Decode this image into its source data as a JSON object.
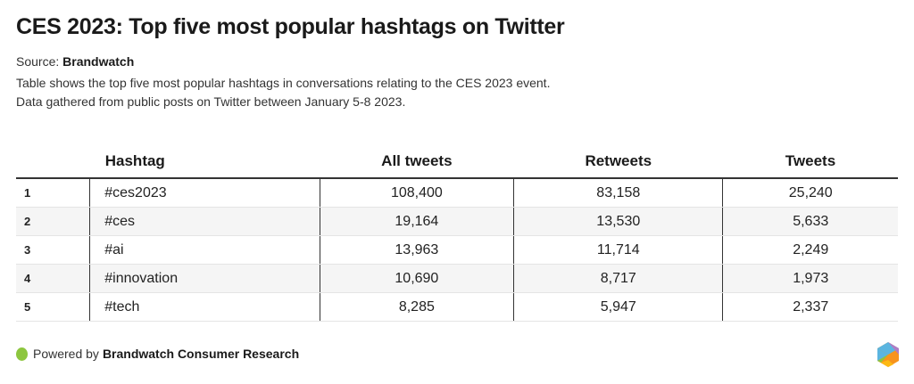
{
  "title": "CES 2023: Top five most popular hashtags on Twitter",
  "source_label": "Source:",
  "source_name": "Brandwatch",
  "description_lines": [
    "Table shows the top five most popular hashtags in conversations relating to the CES 2023 event.",
    "Data gathered from public posts on Twitter between January 5-8 2023."
  ],
  "chart_data": {
    "type": "table",
    "title": "CES 2023: Top five most popular hashtags on Twitter",
    "columns": [
      "",
      "Hashtag",
      "All tweets",
      "Retweets",
      "Tweets"
    ],
    "rows": [
      [
        "1",
        "#ces2023",
        "108,400",
        "83,158",
        "25,240"
      ],
      [
        "2",
        "#ces",
        "19,164",
        "13,530",
        "5,633"
      ],
      [
        "3",
        "#ai",
        "13,963",
        "11,714",
        "2,249"
      ],
      [
        "4",
        "#innovation",
        "10,690",
        "8,717",
        "1,973"
      ],
      [
        "5",
        "#tech",
        "8,285",
        "5,947",
        "2,337"
      ]
    ]
  },
  "footer": {
    "prefix": "Powered by",
    "brand": "Brandwatch Consumer Research",
    "dot_color": "#8dc63f"
  }
}
